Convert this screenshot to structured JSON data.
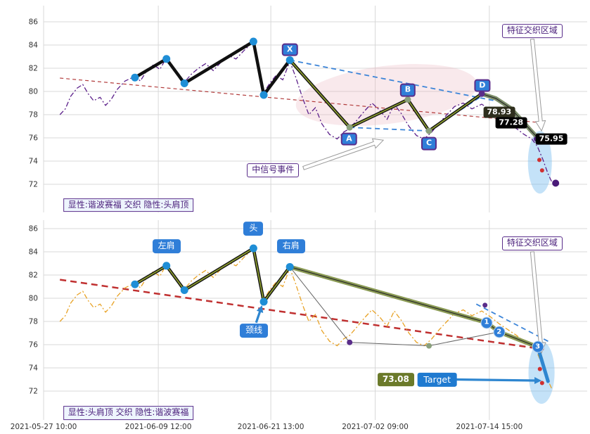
{
  "colors": {
    "grid": "#d8d8d8",
    "axis_text": "#333333",
    "olive": "#8a9a2e",
    "dash_blue": "#3d85d8",
    "final_blue": "#2e86d0",
    "pivot_blue": "#1f8ed6",
    "red_dot": "#d03030"
  },
  "chart_data": {
    "type": "line",
    "title": "",
    "x_ticks": [
      {
        "label": "2021-05-27 10:00",
        "pos": 0.0
      },
      {
        "label": "2021-06-09 12:00",
        "pos": 0.211
      },
      {
        "label": "2021-06-21 13:00",
        "pos": 0.418
      },
      {
        "label": "2021-07-02 09:00",
        "pos": 0.61
      },
      {
        "label": "2021-07-14 15:00",
        "pos": 0.82
      }
    ],
    "y_ticks": [
      86,
      84,
      82,
      80,
      78,
      76,
      74,
      72
    ],
    "ylim": [
      71.3,
      87.2
    ],
    "price_series": [
      [
        0.03,
        78.0
      ],
      [
        0.04,
        78.5
      ],
      [
        0.05,
        79.6
      ],
      [
        0.062,
        80.3
      ],
      [
        0.072,
        80.6
      ],
      [
        0.082,
        79.8
      ],
      [
        0.092,
        79.2
      ],
      [
        0.104,
        79.5
      ],
      [
        0.114,
        78.8
      ],
      [
        0.124,
        79.3
      ],
      [
        0.136,
        80.2
      ],
      [
        0.15,
        80.9
      ],
      [
        0.168,
        81.3
      ],
      [
        0.178,
        80.9
      ],
      [
        0.19,
        81.8
      ],
      [
        0.202,
        82.3
      ],
      [
        0.214,
        81.9
      ],
      [
        0.226,
        82.9
      ],
      [
        0.24,
        81.9
      ],
      [
        0.252,
        81.0
      ],
      [
        0.259,
        80.8
      ],
      [
        0.272,
        81.5
      ],
      [
        0.285,
        82.0
      ],
      [
        0.298,
        82.4
      ],
      [
        0.312,
        81.8
      ],
      [
        0.326,
        82.5
      ],
      [
        0.34,
        83.1
      ],
      [
        0.354,
        82.8
      ],
      [
        0.368,
        83.5
      ],
      [
        0.386,
        84.3
      ],
      [
        0.396,
        82.3
      ],
      [
        0.405,
        79.9
      ],
      [
        0.416,
        80.7
      ],
      [
        0.428,
        81.4
      ],
      [
        0.44,
        81.0
      ],
      [
        0.453,
        82.6
      ],
      [
        0.464,
        81.2
      ],
      [
        0.476,
        79.5
      ],
      [
        0.488,
        78.0
      ],
      [
        0.5,
        78.6
      ],
      [
        0.512,
        77.2
      ],
      [
        0.526,
        76.3
      ],
      [
        0.54,
        75.9
      ],
      [
        0.552,
        76.5
      ],
      [
        0.563,
        76.8
      ],
      [
        0.576,
        77.5
      ],
      [
        0.59,
        78.3
      ],
      [
        0.604,
        79.0
      ],
      [
        0.618,
        78.4
      ],
      [
        0.632,
        77.6
      ],
      [
        0.645,
        78.9
      ],
      [
        0.658,
        78.1
      ],
      [
        0.672,
        77.0
      ],
      [
        0.686,
        76.2
      ],
      [
        0.7,
        75.9
      ],
      [
        0.714,
        76.5
      ],
      [
        0.728,
        77.3
      ],
      [
        0.742,
        78.0
      ],
      [
        0.756,
        78.7
      ],
      [
        0.772,
        79.0
      ],
      [
        0.788,
        78.5
      ],
      [
        0.806,
        78.9
      ],
      [
        0.822,
        78.4
      ],
      [
        0.838,
        77.8
      ],
      [
        0.854,
        77.3
      ],
      [
        0.87,
        76.8
      ],
      [
        0.884,
        76.3
      ],
      [
        0.898,
        75.9
      ],
      [
        0.908,
        75.3
      ],
      [
        0.918,
        74.2
      ],
      [
        0.928,
        72.9
      ],
      [
        0.936,
        72.1
      ]
    ],
    "panels": [
      {
        "id": "harmonic",
        "caption": {
          "text": "显性:谐波赛福 交织 隐性:头肩顶",
          "xf": 0.156,
          "price": 70.2
        },
        "price_line_color": "#5b1f8a",
        "zigzag": [
          [
            0.168,
            81.2
          ],
          [
            0.226,
            82.8
          ],
          [
            0.259,
            80.7
          ],
          [
            0.386,
            84.3
          ],
          [
            0.405,
            79.7
          ],
          [
            0.453,
            82.7
          ],
          [
            0.563,
            76.9
          ],
          [
            0.67,
            79.3
          ],
          [
            0.709,
            76.6
          ],
          [
            0.806,
            79.8
          ]
        ],
        "zigzag_green_from": 5,
        "tail": {
          "points": [
            [
              0.806,
              79.8
            ],
            [
              0.832,
              79.4
            ],
            [
              0.858,
              78.6
            ],
            [
              0.878,
              77.6
            ],
            [
              0.897,
              76.6
            ],
            [
              0.91,
              75.95
            ]
          ],
          "color": "#7d8f6a"
        },
        "trend_dash": {
          "points": [
            [
              0.03,
              81.15
            ],
            [
              0.905,
              77.35
            ]
          ],
          "color": "#b23b3b",
          "width": 1.2,
          "dash": "5 4"
        },
        "dash_blue": [
          [
            [
              0.453,
              82.7
            ],
            [
              0.83,
              79.2
            ]
          ],
          [
            [
              0.563,
              76.9
            ],
            [
              0.709,
              76.6
            ],
            [
              0.806,
              79.6
            ]
          ],
          [
            [
              0.453,
              82.7
            ],
            [
              0.563,
              76.9
            ]
          ]
        ],
        "regions": [
          {
            "cx": 0.631,
            "cy": 79.7,
            "rx": 0.168,
            "ry": 2.5,
            "rot": -7,
            "fill": "rgba(233,175,185,0.28)"
          },
          {
            "cx": 0.913,
            "cy": 73.9,
            "rx": 0.022,
            "ry": 2.7,
            "rot": 0,
            "fill": "rgba(125,190,240,0.45)"
          }
        ],
        "dots": [
          {
            "xf": 0.168,
            "price": 81.2,
            "r": 5.5,
            "color": "#1f8ed6"
          },
          {
            "xf": 0.226,
            "price": 82.8,
            "r": 5.5,
            "color": "#1f8ed6"
          },
          {
            "xf": 0.259,
            "price": 80.7,
            "r": 5.5,
            "color": "#1f8ed6"
          },
          {
            "xf": 0.386,
            "price": 84.3,
            "r": 5.5,
            "color": "#1f8ed6"
          },
          {
            "xf": 0.405,
            "price": 79.7,
            "r": 5.5,
            "color": "#1f8ed6"
          },
          {
            "xf": 0.453,
            "price": 82.7,
            "r": 5.5,
            "color": "#1f8ed6"
          },
          {
            "xf": 0.563,
            "price": 76.9,
            "r": 4.5,
            "color": "#8aa07c"
          },
          {
            "xf": 0.67,
            "price": 79.3,
            "r": 4.5,
            "color": "#8aa07c"
          },
          {
            "xf": 0.709,
            "price": 76.6,
            "r": 4.5,
            "color": "#8aa07c"
          },
          {
            "xf": 0.806,
            "price": 79.8,
            "r": 4.5,
            "color": "#5a2d8a"
          },
          {
            "xf": 0.825,
            "price": 78.4,
            "r": 3.5,
            "color": "#5a2d8a"
          },
          {
            "xf": 0.906,
            "price": 75.9,
            "r": 3.5,
            "color": "#5a2d8a"
          },
          {
            "xf": 0.912,
            "price": 74.1,
            "r": 3,
            "color": "#d03030"
          },
          {
            "xf": 0.917,
            "price": 73.2,
            "r": 3,
            "color": "#d03030"
          },
          {
            "xf": 0.942,
            "price": 72.1,
            "r": 5,
            "color": "#4a1a78"
          }
        ],
        "point_labels": [
          {
            "text": "X",
            "xf": 0.453,
            "price": 83.6
          },
          {
            "text": "A",
            "xf": 0.562,
            "price": 75.9
          },
          {
            "text": "B",
            "xf": 0.67,
            "price": 80.1
          },
          {
            "text": "C",
            "xf": 0.709,
            "price": 75.5
          },
          {
            "text": "D",
            "xf": 0.807,
            "price": 80.5
          }
        ],
        "price_tags": [
          {
            "text": "78.93",
            "xf": 0.838,
            "price": 78.2,
            "style": "dark"
          },
          {
            "text": "77.28",
            "xf": 0.86,
            "price": 77.3,
            "style": "black"
          },
          {
            "text": "75.95",
            "xf": 0.934,
            "price": 75.9,
            "style": "black"
          }
        ],
        "callouts": [
          {
            "text": "特征交织区域",
            "xf": 0.899,
            "price": 85.2,
            "arrow_from": [
              0.899,
              84.5
            ],
            "arrow_to": [
              0.916,
              76.6
            ],
            "arrow_style": "white"
          },
          {
            "text": "中信号事件",
            "xf": 0.422,
            "price": 73.2,
            "arrow_from": [
              0.478,
              73.4
            ],
            "arrow_to": [
              0.625,
              75.8
            ],
            "arrow_style": "white"
          }
        ]
      },
      {
        "id": "head-shoulders",
        "caption": {
          "text": "显性:头肩顶 交织 隐性:谐波赛福",
          "xf": 0.156,
          "price": 70.1
        },
        "price_line_color": "#e8a225",
        "zigzag": [
          [
            0.168,
            81.2
          ],
          [
            0.226,
            82.8
          ],
          [
            0.259,
            80.7
          ],
          [
            0.386,
            84.3
          ],
          [
            0.405,
            79.7
          ],
          [
            0.453,
            82.7
          ]
        ],
        "zigzag_green_from": 0,
        "thin_lines": [
          [
            [
              0.453,
              82.7
            ],
            [
              0.563,
              76.2
            ],
            [
              0.709,
              75.9
            ],
            [
              0.838,
              77.1
            ]
          ]
        ],
        "tail": {
          "points": [
            [
              0.453,
              82.7
            ],
            [
              0.815,
              77.9
            ],
            [
              0.838,
              77.1
            ],
            [
              0.909,
              75.8
            ]
          ],
          "color": "#8a9a54"
        },
        "final": {
          "points": [
            [
              0.909,
              75.8
            ],
            [
              0.928,
              72.85
            ]
          ],
          "color": "#2e86d0",
          "width": 5
        },
        "trend_dash": {
          "points": [
            [
              0.03,
              81.6
            ],
            [
              0.92,
              75.6
            ]
          ],
          "color": "#c03030",
          "width": 2.5,
          "dash": "9 6"
        },
        "dash_blue": [
          [
            [
              0.796,
              79.5
            ],
            [
              0.932,
              76.2
            ]
          ]
        ],
        "regions": [
          {
            "cx": 0.916,
            "cy": 73.6,
            "rx": 0.024,
            "ry": 2.7,
            "rot": 0,
            "fill": "rgba(125,190,240,0.45)"
          }
        ],
        "dots": [
          {
            "xf": 0.168,
            "price": 81.2,
            "r": 5.5,
            "color": "#1f8ed6"
          },
          {
            "xf": 0.226,
            "price": 82.8,
            "r": 5.5,
            "color": "#1f8ed6"
          },
          {
            "xf": 0.259,
            "price": 80.7,
            "r": 5.5,
            "color": "#1f8ed6"
          },
          {
            "xf": 0.386,
            "price": 84.3,
            "r": 5.5,
            "color": "#1f8ed6"
          },
          {
            "xf": 0.405,
            "price": 79.7,
            "r": 5.5,
            "color": "#1f8ed6"
          },
          {
            "xf": 0.453,
            "price": 82.7,
            "r": 5.5,
            "color": "#1f8ed6"
          },
          {
            "xf": 0.563,
            "price": 76.2,
            "r": 4,
            "color": "#5a2d8a"
          },
          {
            "xf": 0.709,
            "price": 75.9,
            "r": 4,
            "color": "#8aa07c"
          },
          {
            "xf": 0.812,
            "price": 79.4,
            "r": 3.5,
            "color": "#5a2d8a"
          },
          {
            "xf": 0.913,
            "price": 73.9,
            "r": 3,
            "color": "#d03030"
          },
          {
            "xf": 0.917,
            "price": 72.7,
            "r": 3,
            "color": "#d03030"
          }
        ],
        "markers": [
          {
            "text": "1",
            "xf": 0.815,
            "price": 77.9
          },
          {
            "text": "2",
            "xf": 0.838,
            "price": 77.1
          },
          {
            "text": "3",
            "xf": 0.909,
            "price": 75.8
          }
        ],
        "point_labels": [
          {
            "text": "左肩",
            "xf": 0.226,
            "price": 84.5,
            "style": "blue"
          },
          {
            "text": "头",
            "xf": 0.386,
            "price": 86.0,
            "style": "blue"
          },
          {
            "text": "右肩",
            "xf": 0.455,
            "price": 84.5,
            "style": "blue"
          },
          {
            "text": "颈线",
            "xf": 0.387,
            "price": 77.2,
            "style": "blue",
            "arrow_from": [
              0.391,
              77.9
            ],
            "arrow_to": [
              0.402,
              79.4
            ],
            "arrow_style": "blue"
          }
        ],
        "price_tags": [
          {
            "text": "73.08",
            "xf": 0.648,
            "price": 73.0,
            "style": "olive"
          },
          {
            "text": "Target",
            "xf": 0.724,
            "price": 73.0,
            "style": "target",
            "arrow_from": [
              0.757,
              73.0
            ],
            "arrow_to": [
              0.916,
              72.9
            ],
            "arrow_style": "blue"
          }
        ],
        "callouts": [
          {
            "text": "特征交织区域",
            "xf": 0.899,
            "price": 84.7,
            "arrow_from": [
              0.899,
              84.0
            ],
            "arrow_to": [
              0.916,
              75.3
            ],
            "arrow_style": "white"
          }
        ]
      }
    ]
  }
}
